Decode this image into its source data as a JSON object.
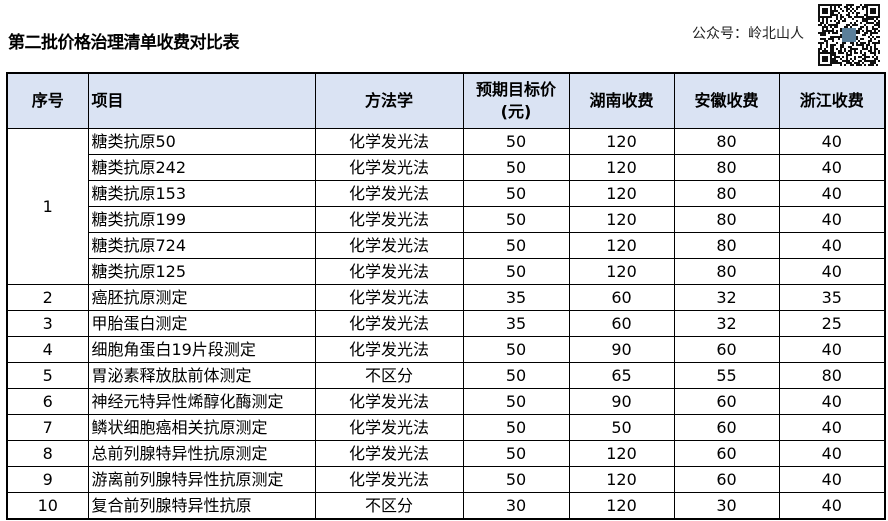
{
  "title": "第二批价格治理清单收费对比表",
  "account": "公众号：岭北山人",
  "qr_icon": "qr-code-icon",
  "header_bg": "#dae3f3",
  "columns": [
    "序号",
    "项目",
    "方法学",
    "预期目标价\n(元)",
    "湖南收费",
    "安徽收费",
    "浙江收费"
  ],
  "groups": [
    {
      "no": "1",
      "rows": [
        [
          "糖类抗原50",
          "化学发光法",
          "50",
          "120",
          "80",
          "40"
        ],
        [
          "糖类抗原242",
          "化学发光法",
          "50",
          "120",
          "80",
          "40"
        ],
        [
          "糖类抗原153",
          "化学发光法",
          "50",
          "120",
          "80",
          "40"
        ],
        [
          "糖类抗原199",
          "化学发光法",
          "50",
          "120",
          "80",
          "40"
        ],
        [
          "糖类抗原724",
          "化学发光法",
          "50",
          "120",
          "80",
          "40"
        ],
        [
          "糖类抗原125",
          "化学发光法",
          "50",
          "120",
          "80",
          "40"
        ]
      ]
    },
    {
      "no": "2",
      "rows": [
        [
          "癌胚抗原测定",
          "化学发光法",
          "35",
          "60",
          "32",
          "35"
        ]
      ]
    },
    {
      "no": "3",
      "rows": [
        [
          "甲胎蛋白测定",
          "化学发光法",
          "35",
          "60",
          "32",
          "25"
        ]
      ]
    },
    {
      "no": "4",
      "rows": [
        [
          "细胞角蛋白19片段测定",
          "化学发光法",
          "50",
          "90",
          "60",
          "40"
        ]
      ]
    },
    {
      "no": "5",
      "rows": [
        [
          "胃泌素释放肽前体测定",
          "不区分",
          "50",
          "65",
          "55",
          "80"
        ]
      ]
    },
    {
      "no": "6",
      "rows": [
        [
          "神经元特异性烯醇化酶测定",
          "化学发光法",
          "50",
          "90",
          "60",
          "40"
        ]
      ]
    },
    {
      "no": "7",
      "rows": [
        [
          "鳞状细胞癌相关抗原测定",
          "化学发光法",
          "50",
          "50",
          "60",
          "40"
        ]
      ]
    },
    {
      "no": "8",
      "rows": [
        [
          "总前列腺特异性抗原测定",
          "化学发光法",
          "50",
          "120",
          "60",
          "40"
        ]
      ]
    },
    {
      "no": "9",
      "rows": [
        [
          "游离前列腺特异性抗原测定",
          "化学发光法",
          "50",
          "120",
          "60",
          "40"
        ]
      ]
    },
    {
      "no": "10",
      "rows": [
        [
          "复合前列腺特异性抗原",
          "不区分",
          "30",
          "120",
          "30",
          "40"
        ]
      ]
    }
  ]
}
